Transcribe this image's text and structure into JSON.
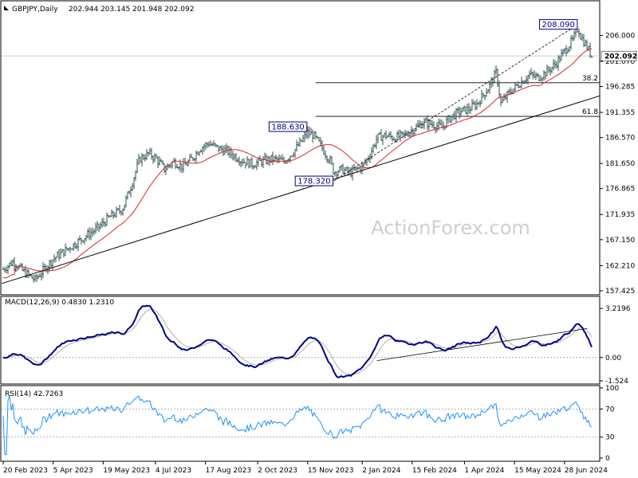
{
  "header": {
    "symbol": "GBPJPY,Daily",
    "ohlc": "202.944 203.145 201.948 202.092"
  },
  "watermark": "ActionForex.com",
  "colors": {
    "price_bars": "#2f4f4f",
    "ma": "#d42a2a",
    "macd_line": "#00008b",
    "macd_signal": "#b0b0b0",
    "rsi": "#1e90ff",
    "trendline": "#000000",
    "fib": "#000000",
    "label_border": "#000080"
  },
  "chart_data": [
    {
      "type": "ohlc",
      "name": "price",
      "ylim": [
        157.425,
        210.0
      ],
      "yticks": [
        "206.000",
        "201.070",
        "196.285",
        "191.355",
        "186.570",
        "181.650",
        "176.865",
        "171.935",
        "167.150",
        "162.210",
        "157.425"
      ],
      "current_price_label": "202.092",
      "x_labels": [
        "20 Feb 2023",
        "5 Apr 2023",
        "19 May 2023",
        "4 Jul 2023",
        "17 Aug 2023",
        "2 Oct 2023",
        "15 Nov 2023",
        "2 Jan 2024",
        "15 Feb 2024",
        "1 Apr 2024",
        "15 May 2024",
        "28 Jun 2024"
      ],
      "approx_close_path": [
        [
          "2023-02-20",
          161.5
        ],
        [
          "2023-03-01",
          163.0
        ],
        [
          "2023-03-10",
          161.0
        ],
        [
          "2023-03-20",
          159.5
        ],
        [
          "2023-03-28",
          161.5
        ],
        [
          "2023-04-05",
          163.5
        ],
        [
          "2023-04-15",
          165.0
        ],
        [
          "2023-04-25",
          166.5
        ],
        [
          "2023-05-05",
          168.0
        ],
        [
          "2023-05-15",
          169.5
        ],
        [
          "2023-05-25",
          171.5
        ],
        [
          "2023-06-05",
          173.0
        ],
        [
          "2023-06-12",
          177.0
        ],
        [
          "2023-06-20",
          182.5
        ],
        [
          "2023-06-28",
          183.5
        ],
        [
          "2023-07-05",
          182.5
        ],
        [
          "2023-07-12",
          180.5
        ],
        [
          "2023-07-20",
          182.0
        ],
        [
          "2023-07-28",
          181.0
        ],
        [
          "2023-08-05",
          182.5
        ],
        [
          "2023-08-12",
          184.5
        ],
        [
          "2023-08-20",
          185.5
        ],
        [
          "2023-08-28",
          184.5
        ],
        [
          "2023-09-05",
          184.0
        ],
        [
          "2023-09-12",
          183.0
        ],
        [
          "2023-09-20",
          182.0
        ],
        [
          "2023-09-28",
          181.5
        ],
        [
          "2023-10-05",
          182.0
        ],
        [
          "2023-10-15",
          182.5
        ],
        [
          "2023-10-25",
          182.0
        ],
        [
          "2023-11-03",
          184.0
        ],
        [
          "2023-11-10",
          186.0
        ],
        [
          "2023-11-15",
          187.5
        ],
        [
          "2023-11-20",
          187.0
        ],
        [
          "2023-11-28",
          184.5
        ],
        [
          "2023-12-05",
          182.0
        ],
        [
          "2023-12-08",
          180.0
        ],
        [
          "2023-12-15",
          180.5
        ],
        [
          "2023-12-22",
          179.8
        ],
        [
          "2024-01-02",
          181.0
        ],
        [
          "2024-01-08",
          183.0
        ],
        [
          "2024-01-15",
          186.5
        ],
        [
          "2024-01-22",
          187.0
        ],
        [
          "2024-01-30",
          186.5
        ],
        [
          "2024-02-08",
          187.0
        ],
        [
          "2024-02-15",
          188.0
        ],
        [
          "2024-02-25",
          189.5
        ],
        [
          "2024-03-05",
          189.0
        ],
        [
          "2024-03-12",
          188.5
        ],
        [
          "2024-03-20",
          190.5
        ],
        [
          "2024-03-28",
          191.5
        ],
        [
          "2024-04-05",
          192.0
        ],
        [
          "2024-04-12",
          193.0
        ],
        [
          "2024-04-22",
          196.0
        ],
        [
          "2024-04-29",
          199.0
        ],
        [
          "2024-05-03",
          193.0
        ],
        [
          "2024-05-10",
          195.0
        ],
        [
          "2024-05-20",
          197.0
        ],
        [
          "2024-05-28",
          198.5
        ],
        [
          "2024-06-05",
          198.0
        ],
        [
          "2024-06-12",
          199.0
        ],
        [
          "2024-06-20",
          200.5
        ],
        [
          "2024-06-28",
          203.0
        ],
        [
          "2024-07-05",
          205.0
        ],
        [
          "2024-07-10",
          207.5
        ],
        [
          "2024-07-12",
          206.0
        ],
        [
          "2024-07-17",
          204.0
        ],
        [
          "2024-07-22",
          202.1
        ]
      ],
      "annotations": [
        {
          "text": "208.090",
          "date": "2024-07-10",
          "price": 208.09
        },
        {
          "text": "188.630",
          "date": "2023-11-15",
          "price": 188.63
        },
        {
          "text": "178.320",
          "date": "2023-12-08",
          "price": 178.32
        },
        {
          "text": "38.2",
          "price": 197.0
        },
        {
          "text": "61.8",
          "price": 190.6
        }
      ]
    },
    {
      "type": "line",
      "name": "MACD(12,26,9)",
      "label": "MACD(12,26,9) 0.4830 1.2310",
      "ylim": [
        -1.524,
        3.8
      ],
      "yticks": [
        "3.2196",
        "0.00",
        "-1.524"
      ]
    },
    {
      "type": "line",
      "name": "RSI(14)",
      "label": "RSI(14) 42.7263",
      "ylim": [
        0,
        100
      ],
      "yticks": [
        "100",
        "70",
        "30",
        "0"
      ]
    }
  ]
}
